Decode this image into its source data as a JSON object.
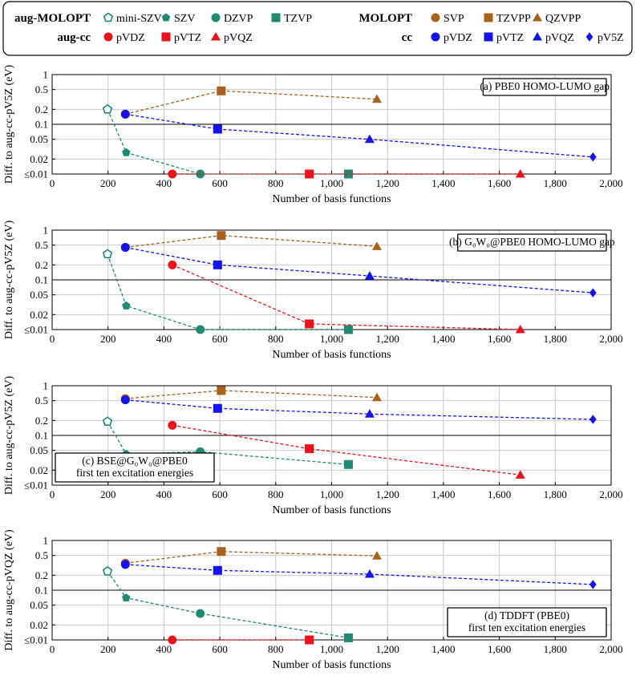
{
  "legend": {
    "groups": [
      {
        "title": "aug-MOLOPT",
        "entries": [
          {
            "label": "mini-SZV",
            "color": "#1f8a70",
            "marker": "pentagon-open"
          },
          {
            "label": "SZV",
            "color": "#1f8a70",
            "marker": "pentagon"
          },
          {
            "label": "DZVP",
            "color": "#1f8a70",
            "marker": "circle"
          },
          {
            "label": "TZVP",
            "color": "#1f8a70",
            "marker": "square"
          }
        ]
      },
      {
        "title": "aug-cc",
        "entries": [
          {
            "label": "pVDZ",
            "color": "#e8141c",
            "marker": "circle"
          },
          {
            "label": "pVTZ",
            "color": "#e8141c",
            "marker": "square"
          },
          {
            "label": "pVQZ",
            "color": "#e8141c",
            "marker": "triangle"
          }
        ]
      },
      {
        "title": "MOLOPT",
        "entries": [
          {
            "label": "SVP",
            "color": "#a8621e",
            "marker": "circle"
          },
          {
            "label": "TZVPP",
            "color": "#a8621e",
            "marker": "square"
          },
          {
            "label": "QZVPP",
            "color": "#a8621e",
            "marker": "triangle"
          }
        ]
      },
      {
        "title": "cc",
        "entries": [
          {
            "label": "pVDZ",
            "color": "#1414e6",
            "marker": "circle"
          },
          {
            "label": "pVTZ",
            "color": "#1414e6",
            "marker": "square"
          },
          {
            "label": "pVQZ",
            "color": "#1414e6",
            "marker": "triangle"
          },
          {
            "label": "pV5Z",
            "color": "#1414e6",
            "marker": "diamond"
          }
        ]
      }
    ]
  },
  "chart_data": [
    {
      "type": "line",
      "title_lines": [
        "(a) PBE0 HOMO-LUMO gap"
      ],
      "title_placement": "top-right",
      "xlabel": "Number of basis functions",
      "ylabel": "Diff. to aug-cc-pV5Z (eV)",
      "xlim": [
        0,
        2000
      ],
      "ylim": [
        0.01,
        1
      ],
      "yscale": "log",
      "grid": true,
      "x_ticks": [
        0,
        200,
        400,
        600,
        800,
        1000,
        1200,
        1400,
        1600,
        1800,
        2000
      ],
      "x_tick_labels": [
        "0",
        "200",
        "400",
        "600",
        "800",
        "1,000",
        "1,200",
        "1,400",
        "1,600",
        "1,800",
        "2,000"
      ],
      "y_ticks": [
        0.01,
        0.02,
        0.05,
        0.1,
        0.2,
        0.5,
        1
      ],
      "y_tick_labels": [
        "≤0.01",
        "0.02",
        "0.05",
        "0.1",
        "0.2",
        "0.5",
        "1"
      ],
      "series": [
        {
          "group": "aug-MOLOPT",
          "color": "#1f8a70",
          "markers": [
            "pentagon-open",
            "pentagon",
            "circle",
            "square"
          ],
          "x": [
            198,
            265,
            530,
            1060
          ],
          "y": [
            0.2,
            0.027,
            0.01,
            0.01
          ]
        },
        {
          "group": "aug-cc",
          "color": "#e8141c",
          "markers": [
            "circle",
            "square",
            "triangle"
          ],
          "x": [
            430,
            920,
            1675
          ],
          "y": [
            0.01,
            0.01,
            0.01
          ]
        },
        {
          "group": "MOLOPT",
          "color": "#a8621e",
          "markers": [
            "circle",
            "square",
            "triangle"
          ],
          "x": [
            262,
            605,
            1162
          ],
          "y": [
            0.16,
            0.47,
            0.32
          ]
        },
        {
          "group": "cc",
          "color": "#1414e6",
          "markers": [
            "circle",
            "square",
            "triangle",
            "diamond"
          ],
          "x": [
            262,
            592,
            1136,
            1935
          ],
          "y": [
            0.16,
            0.08,
            0.05,
            0.022
          ]
        }
      ]
    },
    {
      "type": "line",
      "title_lines": [
        "(b) G₀W₀@PBE0 HOMO-LUMO gap"
      ],
      "title_placement": "top-right",
      "xlabel": "Number of basis functions",
      "ylabel": "Diff. to aug-cc-pV5Z (eV)",
      "xlim": [
        0,
        2000
      ],
      "ylim": [
        0.01,
        1
      ],
      "yscale": "log",
      "grid": true,
      "x_ticks": [
        0,
        200,
        400,
        600,
        800,
        1000,
        1200,
        1400,
        1600,
        1800,
        2000
      ],
      "x_tick_labels": [
        "0",
        "200",
        "400",
        "600",
        "800",
        "1,000",
        "1,200",
        "1,400",
        "1,600",
        "1,800",
        "2,000"
      ],
      "y_ticks": [
        0.01,
        0.02,
        0.05,
        0.1,
        0.2,
        0.5,
        1
      ],
      "y_tick_labels": [
        "≤0.01",
        "0.02",
        "0.05",
        "0.1",
        "0.2",
        "0.5",
        "1"
      ],
      "series": [
        {
          "group": "aug-MOLOPT",
          "color": "#1f8a70",
          "markers": [
            "pentagon-open",
            "pentagon",
            "circle",
            "square"
          ],
          "x": [
            198,
            265,
            530,
            1060
          ],
          "y": [
            0.33,
            0.03,
            0.01,
            0.01
          ]
        },
        {
          "group": "aug-cc",
          "color": "#e8141c",
          "markers": [
            "circle",
            "square",
            "triangle"
          ],
          "x": [
            430,
            920,
            1675
          ],
          "y": [
            0.2,
            0.013,
            0.01
          ]
        },
        {
          "group": "MOLOPT",
          "color": "#a8621e",
          "markers": [
            "circle",
            "square",
            "triangle"
          ],
          "x": [
            262,
            605,
            1162
          ],
          "y": [
            0.45,
            0.78,
            0.47
          ]
        },
        {
          "group": "cc",
          "color": "#1414e6",
          "markers": [
            "circle",
            "square",
            "triangle",
            "diamond"
          ],
          "x": [
            262,
            592,
            1136,
            1935
          ],
          "y": [
            0.45,
            0.2,
            0.12,
            0.055
          ]
        }
      ]
    },
    {
      "type": "line",
      "title_lines": [
        "(c) BSE@G₀W₀@PBE0",
        "first ten excitation energies"
      ],
      "title_placement": "bottom-left",
      "xlabel": "Number of basis functions",
      "ylabel": "Diff. to aug-cc-pV5Z (eV)",
      "xlim": [
        0,
        2000
      ],
      "ylim": [
        0.01,
        1
      ],
      "yscale": "log",
      "grid": true,
      "x_ticks": [
        0,
        200,
        400,
        600,
        800,
        1000,
        1200,
        1400,
        1600,
        1800,
        2000
      ],
      "x_tick_labels": [
        "0",
        "200",
        "400",
        "600",
        "800",
        "1,000",
        "1,200",
        "1,400",
        "1,600",
        "1,800",
        "2,000"
      ],
      "y_ticks": [
        0.01,
        0.02,
        0.05,
        0.1,
        0.2,
        0.5,
        1
      ],
      "y_tick_labels": [
        "≤0.01",
        "0.02",
        "0.05",
        "0.1",
        "0.2",
        "0.5",
        "1"
      ],
      "series": [
        {
          "group": "aug-MOLOPT",
          "color": "#1f8a70",
          "markers": [
            "pentagon-open",
            "pentagon",
            "circle",
            "square"
          ],
          "x": [
            198,
            265,
            530,
            1060
          ],
          "y": [
            0.19,
            0.042,
            0.047,
            0.026
          ]
        },
        {
          "group": "aug-cc",
          "color": "#e8141c",
          "markers": [
            "circle",
            "square",
            "triangle"
          ],
          "x": [
            430,
            920,
            1675
          ],
          "y": [
            0.16,
            0.054,
            0.016
          ]
        },
        {
          "group": "MOLOPT",
          "color": "#a8621e",
          "markers": [
            "circle",
            "square",
            "triangle"
          ],
          "x": [
            262,
            605,
            1162
          ],
          "y": [
            0.55,
            0.8,
            0.58
          ]
        },
        {
          "group": "cc",
          "color": "#1414e6",
          "markers": [
            "circle",
            "square",
            "triangle",
            "diamond"
          ],
          "x": [
            262,
            592,
            1136,
            1935
          ],
          "y": [
            0.52,
            0.35,
            0.27,
            0.21
          ]
        }
      ]
    },
    {
      "type": "line",
      "title_lines": [
        "(d) TDDFT (PBE0)",
        "first ten excitation energies"
      ],
      "title_placement": "bottom-right",
      "xlabel": "Number of basis functions",
      "ylabel": "Diff. to aug-cc-pVQZ (eV)",
      "xlim": [
        0,
        2000
      ],
      "ylim": [
        0.01,
        1
      ],
      "yscale": "log",
      "grid": true,
      "x_ticks": [
        0,
        200,
        400,
        600,
        800,
        1000,
        1200,
        1400,
        1600,
        1800,
        2000
      ],
      "x_tick_labels": [
        "0",
        "200",
        "400",
        "600",
        "800",
        "1,000",
        "1,200",
        "1,400",
        "1,600",
        "1,800",
        "2,000"
      ],
      "y_ticks": [
        0.01,
        0.02,
        0.05,
        0.1,
        0.2,
        0.5,
        1
      ],
      "y_tick_labels": [
        "≤0.01",
        "0.02",
        "0.05",
        "0.1",
        "0.2",
        "0.5",
        "1"
      ],
      "series": [
        {
          "group": "aug-MOLOPT",
          "color": "#1f8a70",
          "markers": [
            "pentagon-open",
            "pentagon",
            "circle",
            "square"
          ],
          "x": [
            198,
            265,
            530,
            1060
          ],
          "y": [
            0.24,
            0.07,
            0.034,
            0.011
          ]
        },
        {
          "group": "aug-cc",
          "color": "#e8141c",
          "markers": [
            "circle",
            "square"
          ],
          "x": [
            430,
            920
          ],
          "y": [
            0.01,
            0.01
          ]
        },
        {
          "group": "MOLOPT",
          "color": "#a8621e",
          "markers": [
            "circle",
            "square",
            "triangle"
          ],
          "x": [
            262,
            605,
            1162
          ],
          "y": [
            0.35,
            0.6,
            0.49
          ]
        },
        {
          "group": "cc",
          "color": "#1414e6",
          "markers": [
            "circle",
            "square",
            "triangle",
            "diamond"
          ],
          "x": [
            262,
            592,
            1136,
            1935
          ],
          "y": [
            0.33,
            0.25,
            0.21,
            0.13
          ]
        }
      ]
    }
  ]
}
